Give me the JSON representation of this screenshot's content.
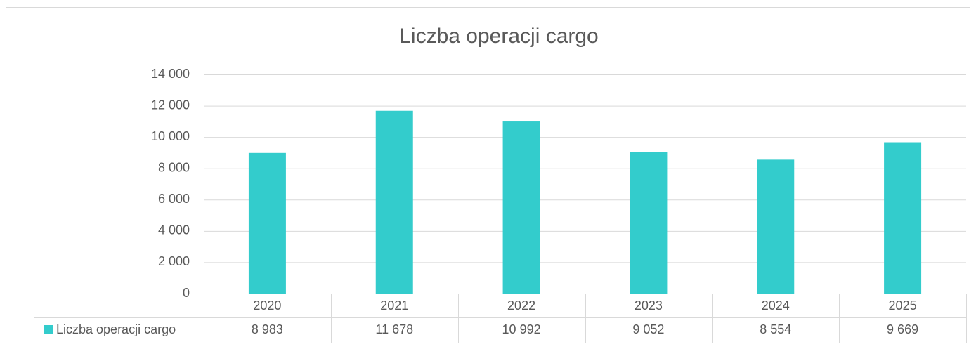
{
  "chart_data": {
    "type": "bar",
    "title": "Liczba operacji cargo",
    "categories": [
      "2020",
      "2021",
      "2022",
      "2023",
      "2024",
      "2025"
    ],
    "series": [
      {
        "name": "Liczba operacji cargo",
        "color": "#33cccc",
        "values": [
          8983,
          11678,
          10992,
          9052,
          8554,
          9669
        ],
        "value_labels": [
          "8 983",
          "11 678",
          "10 992",
          "9 052",
          "8 554",
          "9 669"
        ]
      }
    ],
    "ylim": [
      0,
      14000
    ],
    "yticks": [
      0,
      {
        "value": 2000,
        "label": "2 000"
      },
      {
        "value": 4000,
        "label": "4 000"
      },
      {
        "value": 6000,
        "label": "6 000"
      },
      {
        "value": 8000,
        "label": "8 000"
      },
      {
        "value": 10000,
        "label": "10 000"
      },
      {
        "value": 12000,
        "label": "12 000"
      },
      {
        "value": 14000,
        "label": "14 000"
      }
    ],
    "grid": true,
    "data_table": true
  }
}
